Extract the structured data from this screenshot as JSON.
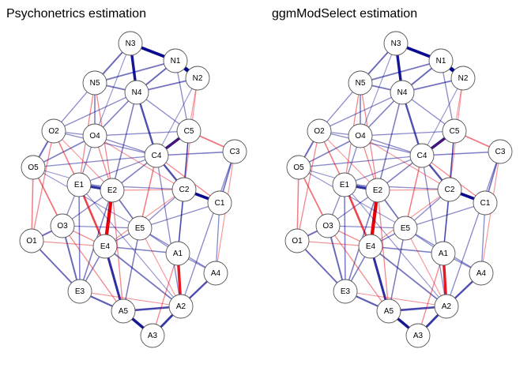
{
  "panels": [
    {
      "title": "Psychonetrics estimation",
      "nodes": [
        {
          "id": "N3",
          "label": "N3"
        },
        {
          "id": "N1",
          "label": "N1"
        },
        {
          "id": "N2",
          "label": "N2"
        },
        {
          "id": "N5",
          "label": "N5"
        },
        {
          "id": "N4",
          "label": "N4"
        },
        {
          "id": "O2",
          "label": "O2"
        },
        {
          "id": "O4",
          "label": "O4"
        },
        {
          "id": "C5",
          "label": "C5"
        },
        {
          "id": "C3",
          "label": "C3"
        },
        {
          "id": "C4",
          "label": "C4"
        },
        {
          "id": "O5",
          "label": "O5"
        },
        {
          "id": "E1",
          "label": "E1"
        },
        {
          "id": "E2",
          "label": "E2"
        },
        {
          "id": "C2",
          "label": "C2"
        },
        {
          "id": "C1",
          "label": "C1"
        },
        {
          "id": "O1",
          "label": "O1"
        },
        {
          "id": "O3",
          "label": "O3"
        },
        {
          "id": "E5",
          "label": "E5"
        },
        {
          "id": "E4",
          "label": "E4"
        },
        {
          "id": "A1",
          "label": "A1"
        },
        {
          "id": "A4",
          "label": "A4"
        },
        {
          "id": "E3",
          "label": "E3"
        },
        {
          "id": "A2",
          "label": "A2"
        },
        {
          "id": "A5",
          "label": "A5"
        },
        {
          "id": "A3",
          "label": "A3"
        }
      ]
    },
    {
      "title": "ggmModSelect estimation",
      "nodes": [
        {
          "id": "N3",
          "label": "N3"
        },
        {
          "id": "N1",
          "label": "N1"
        },
        {
          "id": "N2",
          "label": "N2"
        },
        {
          "id": "N5",
          "label": "N5"
        },
        {
          "id": "N4",
          "label": "N4"
        },
        {
          "id": "O2",
          "label": "O2"
        },
        {
          "id": "O4",
          "label": "O4"
        },
        {
          "id": "C5",
          "label": "C5"
        },
        {
          "id": "C3",
          "label": "C3"
        },
        {
          "id": "C4",
          "label": "C4"
        },
        {
          "id": "O5",
          "label": "O5"
        },
        {
          "id": "E1",
          "label": "E1"
        },
        {
          "id": "E2",
          "label": "E2"
        },
        {
          "id": "C2",
          "label": "C2"
        },
        {
          "id": "C1",
          "label": "C1"
        },
        {
          "id": "O1",
          "label": "O1"
        },
        {
          "id": "O3",
          "label": "O3"
        },
        {
          "id": "E5",
          "label": "E5"
        },
        {
          "id": "E4",
          "label": "E4"
        },
        {
          "id": "A1",
          "label": "A1"
        },
        {
          "id": "A4",
          "label": "A4"
        },
        {
          "id": "E3",
          "label": "E3"
        },
        {
          "id": "A2",
          "label": "A2"
        },
        {
          "id": "A5",
          "label": "A5"
        },
        {
          "id": "A3",
          "label": "A3"
        }
      ]
    }
  ],
  "edge_colors": {
    "positive": "#00008b",
    "negative": "#e8000b"
  },
  "edges": [
    {
      "a": "N1",
      "b": "N2",
      "sign": "positive",
      "weight": 1.0
    },
    {
      "a": "N3",
      "b": "N1",
      "sign": "positive",
      "weight": 0.75
    },
    {
      "a": "N3",
      "b": "N4",
      "sign": "positive",
      "weight": 0.7
    },
    {
      "a": "N3",
      "b": "N5",
      "sign": "positive",
      "weight": 0.35
    },
    {
      "a": "N1",
      "b": "N5",
      "sign": "positive",
      "weight": 0.3
    },
    {
      "a": "N1",
      "b": "N4",
      "sign": "positive",
      "weight": 0.35
    },
    {
      "a": "N2",
      "b": "N4",
      "sign": "positive",
      "weight": 0.3
    },
    {
      "a": "N4",
      "b": "N5",
      "sign": "positive",
      "weight": 0.3
    },
    {
      "a": "N5",
      "b": "O4",
      "sign": "positive",
      "weight": 0.25
    },
    {
      "a": "N4",
      "b": "O4",
      "sign": "positive",
      "weight": 0.25
    },
    {
      "a": "N4",
      "b": "C4",
      "sign": "positive",
      "weight": 0.45
    },
    {
      "a": "N1",
      "b": "C5",
      "sign": "positive",
      "weight": 0.2
    },
    {
      "a": "N2",
      "b": "C5",
      "sign": "negative",
      "weight": 0.15
    },
    {
      "a": "N5",
      "b": "E1",
      "sign": "negative",
      "weight": 0.2
    },
    {
      "a": "N5",
      "b": "O2",
      "sign": "positive",
      "weight": 0.2
    },
    {
      "a": "N4",
      "b": "E2",
      "sign": "positive",
      "weight": 0.25
    },
    {
      "a": "C4",
      "b": "C5",
      "sign": "positive",
      "weight": 0.7
    },
    {
      "a": "C2",
      "b": "C1",
      "sign": "positive",
      "weight": 0.75
    },
    {
      "a": "C4",
      "b": "C2",
      "sign": "positive",
      "weight": 0.45
    },
    {
      "a": "C5",
      "b": "C3",
      "sign": "negative",
      "weight": 0.3
    },
    {
      "a": "C4",
      "b": "C3",
      "sign": "positive",
      "weight": 0.25
    },
    {
      "a": "C3",
      "b": "C1",
      "sign": "positive",
      "weight": 0.3
    },
    {
      "a": "C5",
      "b": "C2",
      "sign": "positive",
      "weight": 0.25
    },
    {
      "a": "C4",
      "b": "C1",
      "sign": "negative",
      "weight": 0.2
    },
    {
      "a": "C5",
      "b": "C4",
      "sign": "negative",
      "weight": 0.2
    },
    {
      "a": "C4",
      "b": "E2",
      "sign": "positive",
      "weight": 0.25
    },
    {
      "a": "C4",
      "b": "E5",
      "sign": "negative",
      "weight": 0.25
    },
    {
      "a": "C2",
      "b": "E5",
      "sign": "positive",
      "weight": 0.2
    },
    {
      "a": "C2",
      "b": "E2",
      "sign": "negative",
      "weight": 0.15
    },
    {
      "a": "O2",
      "b": "O5",
      "sign": "positive",
      "weight": 0.35
    },
    {
      "a": "O2",
      "b": "O4",
      "sign": "positive",
      "weight": 0.2
    },
    {
      "a": "O5",
      "b": "O4",
      "sign": "positive",
      "weight": 0.25
    },
    {
      "a": "O5",
      "b": "O1",
      "sign": "negative",
      "weight": 0.25
    },
    {
      "a": "O2",
      "b": "O1",
      "sign": "negative",
      "weight": 0.2
    },
    {
      "a": "O1",
      "b": "O3",
      "sign": "positive",
      "weight": 0.35
    },
    {
      "a": "O5",
      "b": "O3",
      "sign": "negative",
      "weight": 0.3
    },
    {
      "a": "O4",
      "b": "E1",
      "sign": "positive",
      "weight": 0.2
    },
    {
      "a": "O4",
      "b": "E2",
      "sign": "negative",
      "weight": 0.2
    },
    {
      "a": "O2",
      "b": "E1",
      "sign": "negative",
      "weight": 0.25
    },
    {
      "a": "O3",
      "b": "E1",
      "sign": "positive",
      "weight": 0.2
    },
    {
      "a": "O3",
      "b": "E3",
      "sign": "positive",
      "weight": 0.35
    },
    {
      "a": "O1",
      "b": "E3",
      "sign": "positive",
      "weight": 0.35
    },
    {
      "a": "O3",
      "b": "E2",
      "sign": "positive",
      "weight": 0.2
    },
    {
      "a": "O3",
      "b": "E5",
      "sign": "positive",
      "weight": 0.2
    },
    {
      "a": "E1",
      "b": "E2",
      "sign": "positive",
      "weight": 0.6
    },
    {
      "a": "E2",
      "b": "E4",
      "sign": "negative",
      "weight": 0.9
    },
    {
      "a": "E1",
      "b": "E4",
      "sign": "negative",
      "weight": 0.5
    },
    {
      "a": "E2",
      "b": "E5",
      "sign": "positive",
      "weight": 0.3
    },
    {
      "a": "E4",
      "b": "E5",
      "sign": "positive",
      "weight": 0.25
    },
    {
      "a": "E1",
      "b": "E3",
      "sign": "positive",
      "weight": 0.25
    },
    {
      "a": "E3",
      "b": "E4",
      "sign": "positive",
      "weight": 0.25
    },
    {
      "a": "E2",
      "b": "E3",
      "sign": "positive",
      "weight": 0.25
    },
    {
      "a": "E5",
      "b": "A1",
      "sign": "positive",
      "weight": 0.2
    },
    {
      "a": "E4",
      "b": "A1",
      "sign": "positive",
      "weight": 0.25
    },
    {
      "a": "E4",
      "b": "A5",
      "sign": "positive",
      "weight": 0.6
    },
    {
      "a": "E4",
      "b": "A2",
      "sign": "positive",
      "weight": 0.3
    },
    {
      "a": "E3",
      "b": "A5",
      "sign": "positive",
      "weight": 0.4
    },
    {
      "a": "E3",
      "b": "A2",
      "sign": "negative",
      "weight": 0.15
    },
    {
      "a": "E5",
      "b": "A5",
      "sign": "positive",
      "weight": 0.25
    },
    {
      "a": "E5",
      "b": "A4",
      "sign": "positive",
      "weight": 0.2
    },
    {
      "a": "A1",
      "b": "A2",
      "sign": "negative",
      "weight": 0.7
    },
    {
      "a": "A2",
      "b": "A3",
      "sign": "positive",
      "weight": 0.55
    },
    {
      "a": "A5",
      "b": "A3",
      "sign": "positive",
      "weight": 0.7
    },
    {
      "a": "A2",
      "b": "A5",
      "sign": "positive",
      "weight": 0.5
    },
    {
      "a": "A4",
      "b": "A2",
      "sign": "positive",
      "weight": 0.45
    },
    {
      "a": "A1",
      "b": "A4",
      "sign": "positive",
      "weight": 0.2
    },
    {
      "a": "E2",
      "b": "A5",
      "sign": "negative",
      "weight": 0.2
    },
    {
      "a": "A1",
      "b": "A3",
      "sign": "negative",
      "weight": 0.2
    },
    {
      "a": "C2",
      "b": "A1",
      "sign": "positive",
      "weight": 0.25
    },
    {
      "a": "C1",
      "b": "A4",
      "sign": "positive",
      "weight": 0.2
    },
    {
      "a": "C3",
      "b": "A4",
      "sign": "negative",
      "weight": 0.15
    },
    {
      "a": "C5",
      "b": "A1",
      "sign": "positive",
      "weight": 0.2
    },
    {
      "a": "C4",
      "b": "A2",
      "sign": "positive",
      "weight": 0.2
    },
    {
      "a": "C3",
      "b": "A2",
      "sign": "positive",
      "weight": 0.2
    },
    {
      "a": "O4",
      "b": "C4",
      "sign": "positive",
      "weight": 0.2
    },
    {
      "a": "O4",
      "b": "C2",
      "sign": "negative",
      "weight": 0.15
    },
    {
      "a": "O5",
      "b": "E2",
      "sign": "positive",
      "weight": 0.15
    },
    {
      "a": "O5",
      "b": "E5",
      "sign": "positive",
      "weight": 0.15
    },
    {
      "a": "O2",
      "b": "C4",
      "sign": "positive",
      "weight": 0.2
    },
    {
      "a": "E1",
      "b": "C4",
      "sign": "positive",
      "weight": 0.2
    },
    {
      "a": "E1",
      "b": "C2",
      "sign": "positive",
      "weight": 0.2
    },
    {
      "a": "N4",
      "b": "C5",
      "sign": "positive",
      "weight": 0.2
    },
    {
      "a": "N5",
      "b": "E2",
      "sign": "negative",
      "weight": 0.2
    },
    {
      "a": "N3",
      "b": "O4",
      "sign": "positive",
      "weight": 0.15
    },
    {
      "a": "N2",
      "b": "C2",
      "sign": "negative",
      "weight": 0.15
    },
    {
      "a": "N2",
      "b": "C4",
      "sign": "positive",
      "weight": 0.15
    },
    {
      "a": "O2",
      "b": "N4",
      "sign": "positive",
      "weight": 0.2
    },
    {
      "a": "O2",
      "b": "E2",
      "sign": "negative",
      "weight": 0.15
    },
    {
      "a": "O3",
      "b": "E4",
      "sign": "negative",
      "weight": 0.2
    },
    {
      "a": "O1",
      "b": "E4",
      "sign": "negative",
      "weight": 0.15
    },
    {
      "a": "E5",
      "b": "A2",
      "sign": "negative",
      "weight": 0.15
    },
    {
      "a": "O5",
      "b": "C4",
      "sign": "positive",
      "weight": 0.2
    },
    {
      "a": "O4",
      "b": "C5",
      "sign": "positive",
      "weight": 0.2
    },
    {
      "a": "E1",
      "b": "A2",
      "sign": "positive",
      "weight": 0.15
    },
    {
      "a": "C2",
      "b": "E4",
      "sign": "negative",
      "weight": 0.15
    },
    {
      "a": "C1",
      "b": "E5",
      "sign": "positive",
      "weight": 0.2
    },
    {
      "a": "O3",
      "b": "A5",
      "sign": "negative",
      "weight": 0.2
    }
  ]
}
